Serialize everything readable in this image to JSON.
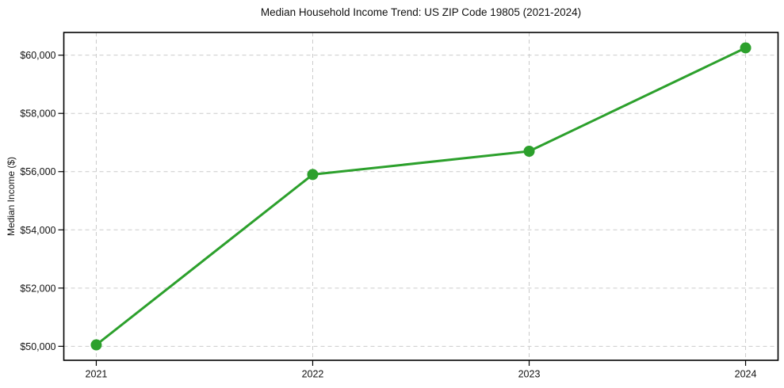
{
  "chart_data": {
    "type": "line",
    "title": "Median Household Income Trend: US ZIP Code 19805 (2021-2024)",
    "xlabel": "",
    "ylabel": "Median Income ($)",
    "x": [
      2021,
      2022,
      2023,
      2024
    ],
    "x_tick_labels": [
      "2021",
      "2022",
      "2023",
      "2024"
    ],
    "series": [
      {
        "name": "Median Household Income",
        "values": [
          50050,
          55900,
          56700,
          60250
        ]
      }
    ],
    "y_ticks": [
      50000,
      52000,
      54000,
      56000,
      58000,
      60000
    ],
    "y_tick_labels": [
      "$50,000",
      "$52,000",
      "$54,000",
      "$56,000",
      "$58,000",
      "$60,000"
    ],
    "xlim": [
      2020.85,
      2024.15
    ],
    "ylim": [
      49520,
      60780
    ],
    "grid": true,
    "grid_linestyle": "dashed",
    "legend_position": "none",
    "colors": {
      "line": "#2ca02c",
      "marker": "#2ca02c",
      "grid": "#cccccc",
      "axis": "#000000",
      "text": "#111111",
      "background": "#ffffff"
    }
  }
}
